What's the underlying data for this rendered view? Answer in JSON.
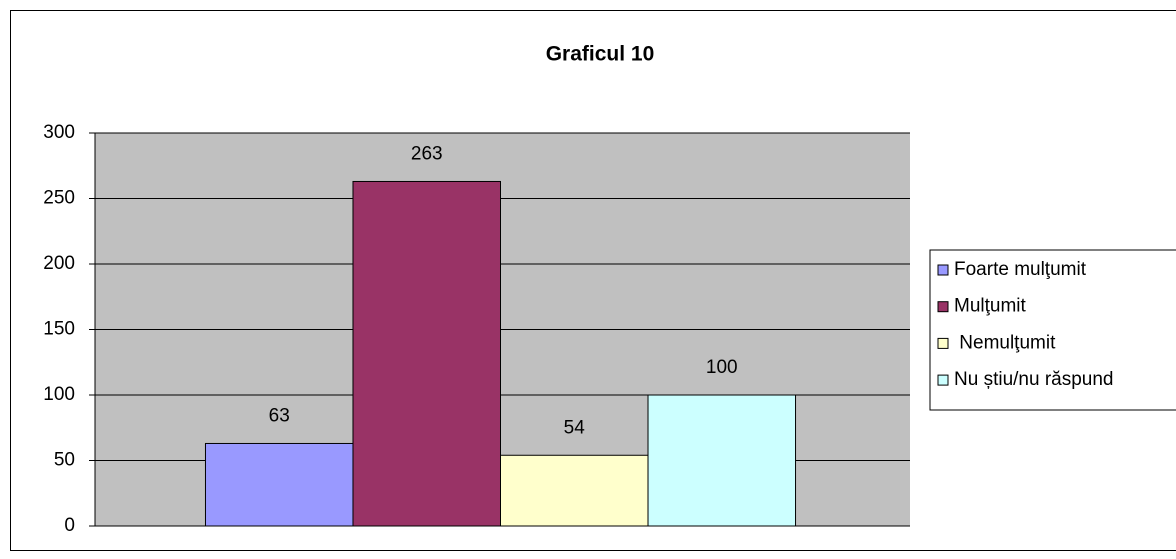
{
  "chart_data": {
    "type": "bar",
    "title": "Graficul 10",
    "categories": [
      null
    ],
    "series": [
      {
        "name": "Foarte mulţumit",
        "color": "#9999ff",
        "values": [
          63
        ]
      },
      {
        "name": "Mulţumit",
        "color": "#993366",
        "values": [
          263
        ]
      },
      {
        "name": " Nemulţumit",
        "color": "#ffffcc",
        "values": [
          54
        ]
      },
      {
        "name": "Nu știu/nu răspund",
        "color": "#ccffff",
        "values": [
          100
        ]
      }
    ],
    "ylim": [
      0,
      300
    ],
    "yticks": [
      0,
      50,
      100,
      150,
      200,
      250,
      300
    ],
    "grid": true,
    "legend": "right"
  }
}
